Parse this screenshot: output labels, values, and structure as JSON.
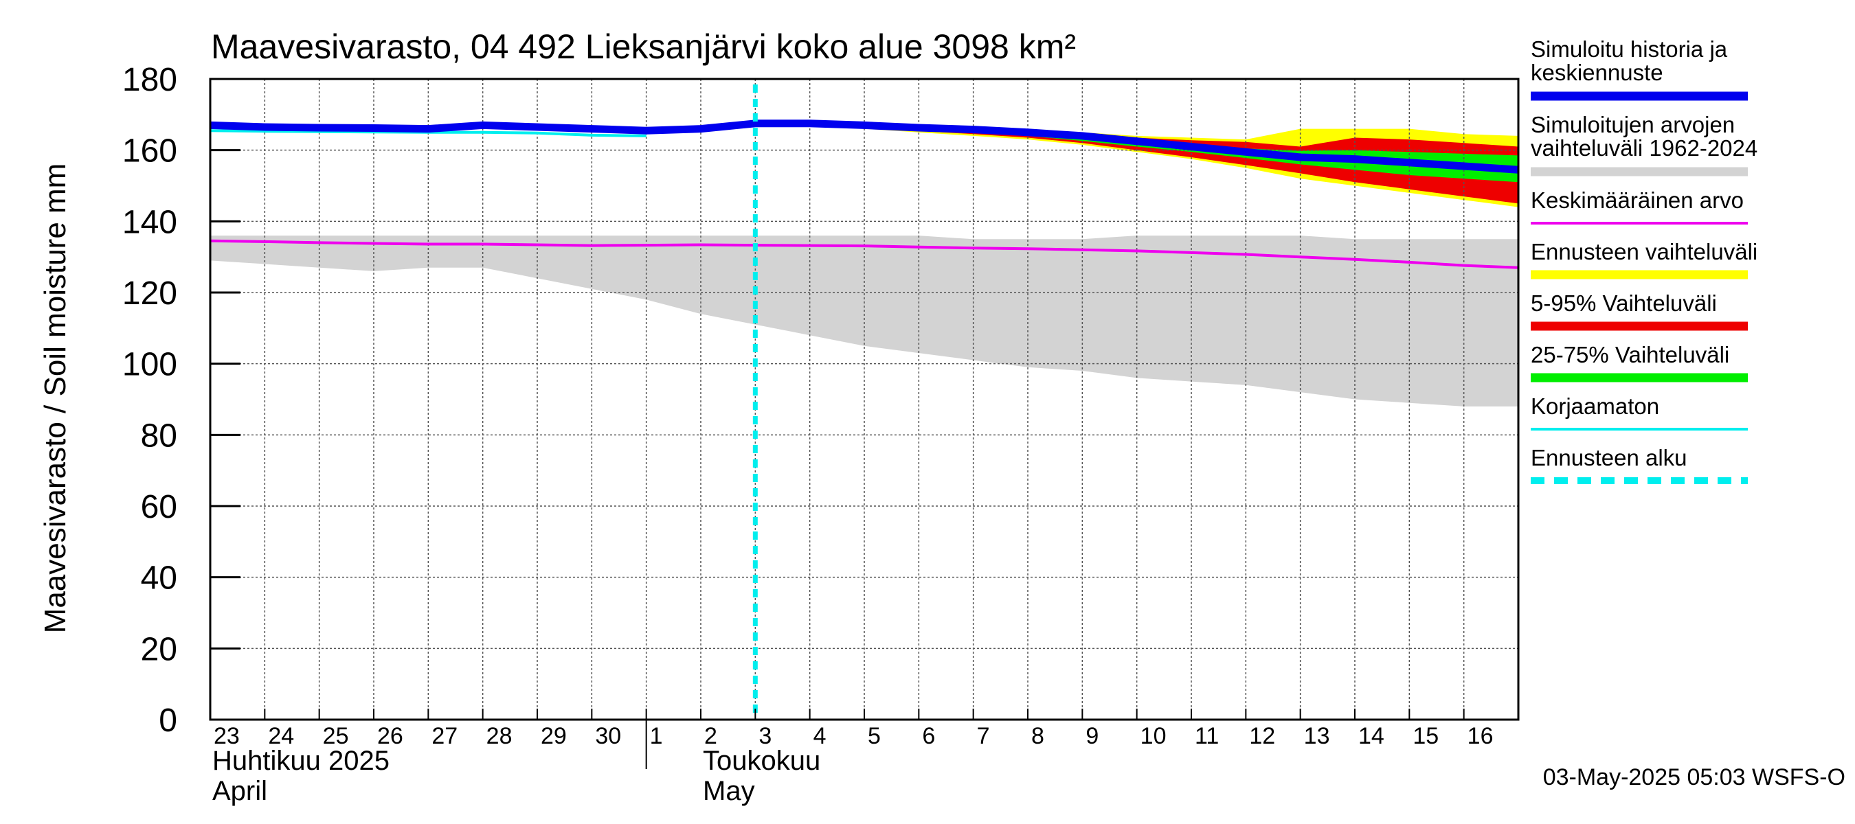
{
  "chart_data": {
    "type": "line",
    "title": "Maavesivarasto, 04 492 Lieksanjärvi koko alue 3098 km²",
    "ylabel": "Maavesivarasto / Soil moisture   mm",
    "ylim": [
      0,
      180
    ],
    "yticks": [
      0,
      20,
      40,
      60,
      80,
      100,
      120,
      140,
      160,
      180
    ],
    "xlim": [
      0,
      24
    ],
    "x_tick_labels": [
      "23",
      "24",
      "25",
      "26",
      "27",
      "28",
      "29",
      "30",
      "1",
      "2",
      "3",
      "4",
      "5",
      "6",
      "7",
      "8",
      "9",
      "10",
      "11",
      "12",
      "13",
      "14",
      "15",
      "16"
    ],
    "month_labels": [
      {
        "line1": "Huhtikuu  2025",
        "line2": "April",
        "at": 0
      },
      {
        "line1": "Toukokuu",
        "line2": "May",
        "at": 9
      }
    ],
    "month_separator_at": 8,
    "forecast_start": 10.0,
    "grid": true,
    "legend_position": "right",
    "timestamp": "03-May-2025 05:03 WSFS-O",
    "colors": {
      "history": "#0000ee",
      "historical_range": "#d3d3d3",
      "mean": "#ee00ee",
      "forecast_range": "#ffff00",
      "p5_95": "#ee0000",
      "p25_75": "#00ee00",
      "uncorrected": "#00eeee",
      "forecast_start": "#00eeee"
    },
    "legend": [
      {
        "key": "history",
        "lines": [
          "Simuloitu historia ja",
          "keskiennuste"
        ],
        "style": "thick"
      },
      {
        "key": "historical_range",
        "lines": [
          "Simuloitujen arvojen",
          "vaihteluväli 1962-2024"
        ],
        "style": "band"
      },
      {
        "key": "mean",
        "lines": [
          "Keskimääräinen arvo"
        ],
        "style": "thin"
      },
      {
        "key": "forecast_range",
        "lines": [
          "Ennusteen vaihteluväli"
        ],
        "style": "band"
      },
      {
        "key": "p5_95",
        "lines": [
          "5-95% Vaihteluväli"
        ],
        "style": "band"
      },
      {
        "key": "p25_75",
        "lines": [
          "25-75% Vaihteluväli"
        ],
        "style": "band"
      },
      {
        "key": "uncorrected",
        "lines": [
          "Korjaamaton"
        ],
        "style": "thin"
      },
      {
        "key": "forecast_start",
        "lines": [
          "Ennusteen alku"
        ],
        "style": "dashed"
      }
    ],
    "series": {
      "historical_range": {
        "x": [
          0,
          1,
          2,
          3,
          4,
          5,
          6,
          7,
          8,
          9,
          10,
          11,
          12,
          13,
          14,
          15,
          16,
          17,
          18,
          19,
          20,
          21,
          22,
          23,
          24
        ],
        "upper": [
          136,
          136,
          136,
          136,
          136,
          136,
          136,
          136,
          136,
          136,
          136,
          136,
          136,
          136,
          135,
          135,
          135,
          136,
          136,
          136,
          136,
          135,
          135,
          135,
          135
        ],
        "lower": [
          129,
          128,
          127,
          126,
          127,
          127,
          124,
          121,
          118,
          114,
          111,
          108,
          105,
          103,
          101,
          99,
          98,
          96,
          95,
          94,
          92,
          90,
          89,
          88,
          88
        ]
      },
      "mean": {
        "x": [
          0,
          1,
          2,
          3,
          4,
          5,
          6,
          7,
          8,
          9,
          10,
          11,
          12,
          13,
          14,
          15,
          16,
          17,
          18,
          19,
          20,
          21,
          22,
          23,
          24
        ],
        "values": [
          134.5,
          134.3,
          134.0,
          133.8,
          133.6,
          133.6,
          133.4,
          133.2,
          133.3,
          133.4,
          133.3,
          133.2,
          133.1,
          132.8,
          132.5,
          132.3,
          132.0,
          131.7,
          131.2,
          130.7,
          130.0,
          129.3,
          128.5,
          127.6,
          127.0
        ]
      },
      "uncorrected": {
        "x": [
          0,
          1,
          2,
          3,
          4,
          5,
          6,
          7,
          8
        ],
        "values": [
          165.5,
          165.3,
          165.2,
          165.1,
          165.0,
          165.0,
          164.8,
          164.2,
          164.0
        ]
      },
      "history": {
        "x": [
          0,
          1,
          2,
          3,
          4,
          5,
          6,
          7,
          8,
          9,
          10,
          11,
          12,
          13,
          14,
          15,
          16,
          17,
          18,
          19,
          20,
          21,
          22,
          23,
          24
        ],
        "values": [
          167.0,
          166.5,
          166.3,
          166.2,
          166.0,
          167.0,
          166.5,
          166.0,
          165.5,
          166.0,
          167.5,
          167.5,
          167.0,
          166.3,
          165.8,
          165.0,
          164.0,
          162.5,
          161.0,
          159.5,
          158.0,
          157.5,
          156.5,
          155.5,
          154.5
        ]
      },
      "forecast_range": {
        "x": [
          10,
          11,
          12,
          13,
          14,
          15,
          16,
          17,
          18,
          19,
          20,
          21,
          22,
          23,
          24
        ],
        "upper": [
          168.0,
          168.0,
          167.5,
          167.0,
          166.5,
          166.0,
          165.0,
          164.0,
          163.5,
          163.0,
          166.0,
          166.0,
          166.0,
          164.5,
          164.0
        ],
        "lower": [
          167.0,
          167.0,
          166.0,
          165.0,
          164.0,
          163.0,
          161.5,
          159.5,
          157.5,
          155.0,
          152.0,
          150.0,
          148.0,
          146.0,
          144.0
        ]
      },
      "p5_95": {
        "x": [
          10,
          11,
          12,
          13,
          14,
          15,
          16,
          17,
          18,
          19,
          20,
          21,
          22,
          23,
          24
        ],
        "upper": [
          168.0,
          167.8,
          167.2,
          166.6,
          166.0,
          165.3,
          164.3,
          163.5,
          162.8,
          162.3,
          161.0,
          163.5,
          163.0,
          162.0,
          161.0
        ],
        "lower": [
          167.2,
          167.2,
          166.4,
          165.4,
          164.5,
          163.5,
          162.0,
          160.0,
          158.0,
          155.8,
          153.5,
          151.0,
          149.0,
          147.0,
          145.0
        ]
      },
      "p25_75": {
        "x": [
          10,
          11,
          12,
          13,
          14,
          15,
          16,
          17,
          18,
          19,
          20,
          21,
          22,
          23,
          24
        ],
        "upper": [
          167.8,
          167.6,
          167.0,
          166.4,
          165.8,
          165.0,
          163.8,
          162.6,
          161.5,
          160.5,
          159.8,
          160.0,
          159.5,
          159.0,
          158.5
        ],
        "lower": [
          167.3,
          167.3,
          166.6,
          165.8,
          165.0,
          164.0,
          162.6,
          161.0,
          159.5,
          157.8,
          156.0,
          154.5,
          153.0,
          152.0,
          151.0
        ]
      }
    }
  }
}
